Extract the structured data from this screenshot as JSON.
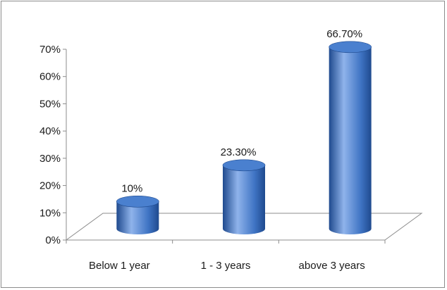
{
  "chart_data": {
    "type": "bar",
    "style": "3d-cylinder",
    "categories": [
      "Below 1 year",
      "1 - 3 years",
      "above 3 years"
    ],
    "values": [
      10,
      23.3,
      66.7
    ],
    "data_labels": [
      "10%",
      "23.30%",
      "66.70%"
    ],
    "y_ticks": [
      "0%",
      "10%",
      "20%",
      "30%",
      "40%",
      "50%",
      "60%",
      "70%"
    ],
    "ylim": [
      0,
      70
    ],
    "grid": false,
    "legend": "none",
    "colors": {
      "bar_body": "#3f74c4",
      "bar_highlight": "#8fb3eb",
      "bar_shadow": "#1f4a8e",
      "bar_top": "#4a80cf",
      "axis": "#8c8c8c"
    }
  }
}
